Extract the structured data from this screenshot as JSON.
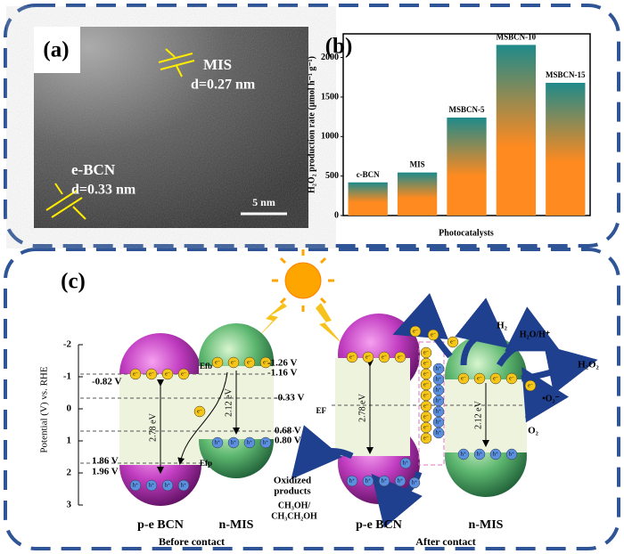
{
  "panel_a": {
    "label": "(a)",
    "mis": "MIS",
    "mis_d": "d=0.27 nm",
    "bcn": "e-BCN",
    "bcn_d": "d=0.33 nm",
    "scale": "5 nm"
  },
  "chart_data": {
    "type": "bar",
    "panel_label": "(b)",
    "categories": [
      "c-BCN",
      "MIS",
      "MSBCN-5",
      "MSBCN-10",
      "MSBCN-15"
    ],
    "values": [
      420,
      545,
      1240,
      2160,
      1680
    ],
    "ylim": [
      0,
      2300
    ],
    "yticks": [
      0,
      500,
      1000,
      1500,
      2000
    ],
    "y_label": "H₂O₂ production rate (μmol h⁻¹ g⁻¹)",
    "x_label": "Photocatalysts",
    "color_top": "#1e8a8a",
    "color_bottom": "#ff8a1f"
  },
  "panel_c": {
    "label": "(c)",
    "axis": {
      "label": "Potential (V) vs. RHE",
      "ylim": [
        -2,
        3
      ],
      "yticks": [
        -2,
        -1,
        0,
        1,
        2,
        3
      ]
    },
    "electron": "e⁻",
    "hole": "h⁺",
    "labels": {
      "bcn_cb": "-0.82 V",
      "mis_cb1": "-1.26 V",
      "mis_cb2": "-1.16 V",
      "mid1": "-0.33 V",
      "mis_vb1": "0.68 V",
      "mis_vb2": "0.80 V",
      "bcn_vb1": "1.86 V",
      "bcn_vb2": "1.96 V",
      "efb": "Efb",
      "efp": "Efp",
      "gap_bcn": "2.78 eV",
      "gap_mis": "2.12 eV",
      "name_bcn": "p-e BCN",
      "name_mis": "n-MIS",
      "before": "Before contact",
      "gap_bcn2": "2.78 eV",
      "gap_mis2": "2.12 eV",
      "ef": "EF",
      "h2": "H₂",
      "h2o": "H₂O/H⁺",
      "h2o2": "H₂O₂",
      "o2r": "•O₂⁻",
      "o2": "O₂",
      "ox1": "Oxidized",
      "ox2": "products",
      "alc1": "CH₃OH/",
      "alc2": "CH₃CH₂OH",
      "name_bcn2": "p-e BCN",
      "name_mis2": "n-MIS",
      "after": "After contact"
    }
  }
}
